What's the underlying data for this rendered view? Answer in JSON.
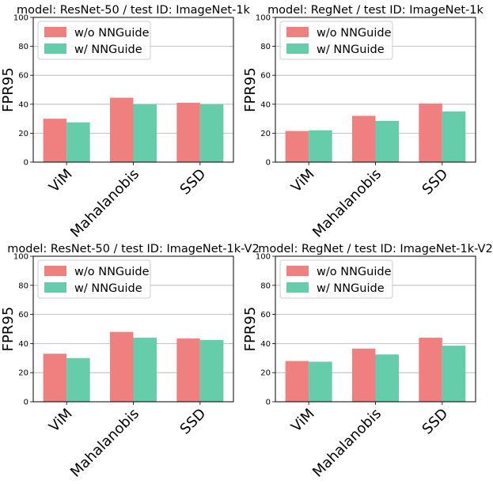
{
  "colors": {
    "without": "#f08080",
    "with": "#66cdaa",
    "grid": "#b0b0b0"
  },
  "chart_data": [
    {
      "type": "bar",
      "title": "model: ResNet-50 / test ID: ImageNet-1k",
      "ylabel": "FPR95",
      "ylim": [
        0,
        100
      ],
      "yticks": [
        0,
        20,
        40,
        60,
        80,
        100
      ],
      "grid": true,
      "legend": "top-left",
      "categories": [
        "ViM",
        "Mahalanobis",
        "SSD"
      ],
      "series": [
        {
          "name": "w/o NNGuide",
          "values": [
            30,
            44.5,
            41
          ]
        },
        {
          "name": "w/ NNGuide",
          "values": [
            27.5,
            40,
            40
          ]
        }
      ]
    },
    {
      "type": "bar",
      "title": "model: RegNet / test ID: ImageNet-1k",
      "ylabel": "FPR95",
      "ylim": [
        0,
        100
      ],
      "yticks": [
        0,
        20,
        40,
        60,
        80,
        100
      ],
      "grid": true,
      "legend": "top-left",
      "categories": [
        "ViM",
        "Mahalanobis",
        "SSD"
      ],
      "series": [
        {
          "name": "w/o NNGuide",
          "values": [
            21.5,
            32,
            40.5
          ]
        },
        {
          "name": "w/ NNGuide",
          "values": [
            22,
            28.5,
            35
          ]
        }
      ]
    },
    {
      "type": "bar",
      "title": "model: ResNet-50 / test ID: ImageNet-1k-V2",
      "ylabel": "FPR95",
      "ylim": [
        0,
        100
      ],
      "yticks": [
        0,
        20,
        40,
        60,
        80,
        100
      ],
      "grid": true,
      "legend": "top-left",
      "categories": [
        "ViM",
        "Mahalanobis",
        "SSD"
      ],
      "series": [
        {
          "name": "w/o NNGuide",
          "values": [
            33,
            48,
            43.5
          ]
        },
        {
          "name": "w/ NNGuide",
          "values": [
            30,
            44,
            42.5
          ]
        }
      ]
    },
    {
      "type": "bar",
      "title": "model: RegNet / test ID: ImageNet-1k-V2",
      "ylabel": "FPR95",
      "ylim": [
        0,
        100
      ],
      "yticks": [
        0,
        20,
        40,
        60,
        80,
        100
      ],
      "grid": true,
      "legend": "top-left",
      "categories": [
        "ViM",
        "Mahalanobis",
        "SSD"
      ],
      "series": [
        {
          "name": "w/o NNGuide",
          "values": [
            28,
            36.5,
            44
          ]
        },
        {
          "name": "w/ NNGuide",
          "values": [
            27.5,
            32.5,
            38.5
          ]
        }
      ]
    }
  ]
}
